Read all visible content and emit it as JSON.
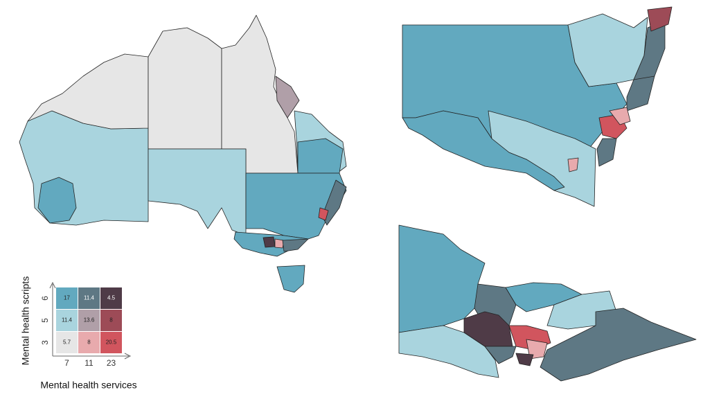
{
  "legend": {
    "y_label": "Mental health scripts",
    "x_label": "Mental health services",
    "y_ticks": [
      6,
      5,
      3
    ],
    "x_ticks": [
      7,
      11,
      23
    ],
    "cells": [
      [
        17,
        11.4,
        4.5
      ],
      [
        11.4,
        13.6,
        8
      ],
      [
        5.7,
        8,
        20.5
      ]
    ],
    "colors": [
      [
        "#62a9bf",
        "#5e7884",
        "#4f3b47"
      ],
      [
        "#a9d4de",
        "#b09fa8",
        "#9d4b57"
      ],
      [
        "#e6e6e6",
        "#e8aaad",
        "#d1555e"
      ]
    ]
  }
}
